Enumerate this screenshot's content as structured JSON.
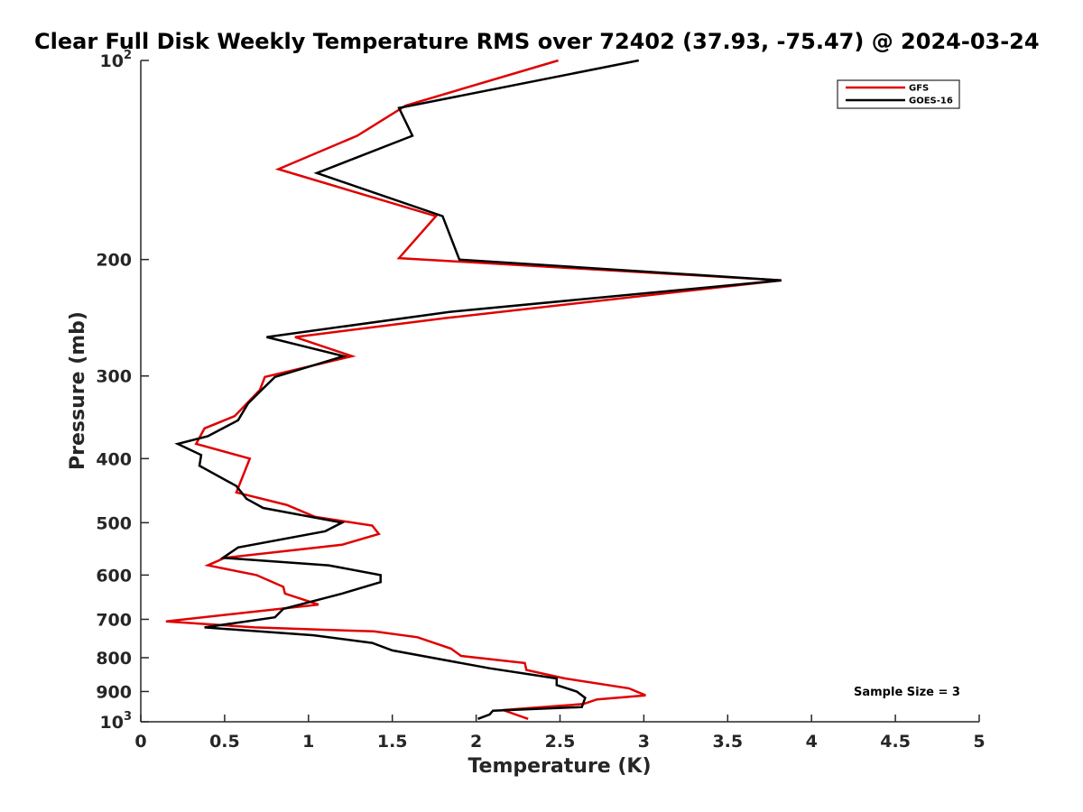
{
  "chart_data": {
    "type": "line",
    "title": "Clear Full Disk Weekly Temperature RMS over 72402 (37.93, -75.47) @ 2024-03-24",
    "xlabel": "Temperature (K)",
    "ylabel": "Pressure (mb)",
    "xlim": [
      0,
      5
    ],
    "ylim": [
      100,
      1000
    ],
    "y_scale": "log",
    "y_reversed": true,
    "x_ticks": [
      "0",
      "0.5",
      "1",
      "1.5",
      "2",
      "2.5",
      "3",
      "3.5",
      "4",
      "4.5",
      "5"
    ],
    "y_ticks": [
      {
        "value": 100,
        "base": "10",
        "exp": "2"
      },
      {
        "value": 200,
        "label": "200"
      },
      {
        "value": 300,
        "label": "300"
      },
      {
        "value": 400,
        "label": "400"
      },
      {
        "value": 500,
        "label": "500"
      },
      {
        "value": 600,
        "label": "600"
      },
      {
        "value": 700,
        "label": "700"
      },
      {
        "value": 800,
        "label": "800"
      },
      {
        "value": 900,
        "label": "900"
      },
      {
        "value": 1000,
        "base": "10",
        "exp": "3"
      }
    ],
    "legend_position": "top-right",
    "annotation": "Sample Size = 3",
    "series": [
      {
        "name": "GFS",
        "color": "#e00000",
        "points": [
          [
            2.49,
            100
          ],
          [
            1.58,
            117
          ],
          [
            1.29,
            130
          ],
          [
            0.82,
            146
          ],
          [
            1.76,
            172
          ],
          [
            1.54,
            199
          ],
          [
            3.82,
            215
          ],
          [
            1.83,
            245
          ],
          [
            0.92,
            262
          ],
          [
            1.26,
            280
          ],
          [
            0.74,
            301
          ],
          [
            0.71,
            315
          ],
          [
            0.56,
            345
          ],
          [
            0.38,
            360
          ],
          [
            0.33,
            380
          ],
          [
            0.65,
            400
          ],
          [
            0.57,
            450
          ],
          [
            0.87,
            470
          ],
          [
            1.04,
            490
          ],
          [
            1.38,
            505
          ],
          [
            1.42,
            520
          ],
          [
            1.2,
            540
          ],
          [
            0.5,
            565
          ],
          [
            0.4,
            580
          ],
          [
            0.69,
            600
          ],
          [
            0.85,
            625
          ],
          [
            0.86,
            640
          ],
          [
            1.06,
            665
          ],
          [
            0.15,
            705
          ],
          [
            0.68,
            720
          ],
          [
            1.39,
            730
          ],
          [
            1.65,
            745
          ],
          [
            1.85,
            775
          ],
          [
            1.91,
            795
          ],
          [
            2.29,
            815
          ],
          [
            2.3,
            835
          ],
          [
            2.53,
            860
          ],
          [
            2.91,
            890
          ],
          [
            3.01,
            912
          ],
          [
            2.72,
            925
          ],
          [
            2.64,
            940
          ],
          [
            2.16,
            960
          ],
          [
            2.31,
            990
          ]
        ]
      },
      {
        "name": "GOES-16",
        "color": "#000000",
        "points": [
          [
            2.97,
            100
          ],
          [
            1.54,
            118
          ],
          [
            1.62,
            130
          ],
          [
            1.05,
            148
          ],
          [
            1.8,
            172
          ],
          [
            1.9,
            200
          ],
          [
            3.82,
            215
          ],
          [
            1.84,
            240
          ],
          [
            0.75,
            262
          ],
          [
            1.21,
            280
          ],
          [
            0.8,
            301
          ],
          [
            0.72,
            315
          ],
          [
            0.64,
            330
          ],
          [
            0.58,
            350
          ],
          [
            0.4,
            370
          ],
          [
            0.22,
            380
          ],
          [
            0.36,
            395
          ],
          [
            0.35,
            410
          ],
          [
            0.57,
            440
          ],
          [
            0.63,
            460
          ],
          [
            0.73,
            475
          ],
          [
            1.2,
            500
          ],
          [
            1.1,
            515
          ],
          [
            0.58,
            545
          ],
          [
            0.49,
            565
          ],
          [
            1.12,
            580
          ],
          [
            1.43,
            600
          ],
          [
            1.43,
            615
          ],
          [
            1.2,
            640
          ],
          [
            0.85,
            675
          ],
          [
            0.8,
            695
          ],
          [
            0.38,
            720
          ],
          [
            1.03,
            740
          ],
          [
            1.38,
            760
          ],
          [
            1.5,
            780
          ],
          [
            2.08,
            830
          ],
          [
            2.48,
            860
          ],
          [
            2.48,
            880
          ],
          [
            2.6,
            900
          ],
          [
            2.65,
            920
          ],
          [
            2.63,
            950
          ],
          [
            2.1,
            962
          ],
          [
            2.08,
            975
          ],
          [
            2.01,
            990
          ]
        ]
      }
    ]
  }
}
